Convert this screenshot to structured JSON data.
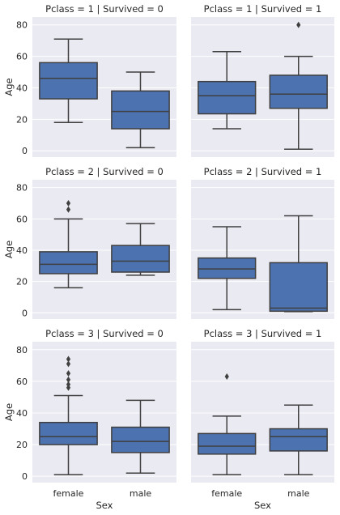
{
  "chart_data": {
    "type": "box",
    "x_label": "Sex",
    "y_label": "Age",
    "categories": [
      "female",
      "male"
    ],
    "y_ticks": [
      0,
      20,
      40,
      60,
      80
    ],
    "ylim": [
      -4,
      85
    ],
    "grid": true,
    "colors": {
      "box_fill": "#4c72b0",
      "line": "#3f3f3f",
      "panel_bg": "#eaeaf2",
      "grid": "#ffffff"
    },
    "panels": [
      {
        "title": "Pclass = 1 | Survived = 0",
        "boxes": [
          {
            "category": "female",
            "whisker_low": 18,
            "q1": 33,
            "median": 46,
            "q3": 56,
            "whisker_high": 71,
            "fliers": []
          },
          {
            "category": "male",
            "whisker_low": 2,
            "q1": 14,
            "median": 25,
            "q3": 38,
            "whisker_high": 50,
            "fliers": []
          }
        ]
      },
      {
        "title": "Pclass = 1 | Survived = 1",
        "boxes": [
          {
            "category": "female",
            "whisker_low": 14,
            "q1": 23.5,
            "median": 35,
            "q3": 44,
            "whisker_high": 63,
            "fliers": []
          },
          {
            "category": "male",
            "whisker_low": 1,
            "q1": 27,
            "median": 36,
            "q3": 48,
            "whisker_high": 60,
            "fliers": [
              80
            ]
          }
        ]
      },
      {
        "title": "Pclass = 2 | Survived = 0",
        "boxes": [
          {
            "category": "female",
            "whisker_low": 16,
            "q1": 25,
            "median": 31,
            "q3": 39,
            "whisker_high": 60,
            "fliers": [
              66,
              70
            ]
          },
          {
            "category": "male",
            "whisker_low": 24,
            "q1": 26,
            "median": 33,
            "q3": 43,
            "whisker_high": 57,
            "fliers": []
          }
        ]
      },
      {
        "title": "Pclass = 2 | Survived = 1",
        "boxes": [
          {
            "category": "female",
            "whisker_low": 2,
            "q1": 22,
            "median": 28,
            "q3": 35,
            "whisker_high": 55,
            "fliers": []
          },
          {
            "category": "male",
            "whisker_low": 0.7,
            "q1": 1,
            "median": 3,
            "q3": 32,
            "whisker_high": 62,
            "fliers": []
          }
        ]
      },
      {
        "title": "Pclass = 3 | Survived = 0",
        "boxes": [
          {
            "category": "female",
            "whisker_low": 1,
            "q1": 20,
            "median": 25,
            "q3": 34,
            "whisker_high": 51,
            "fliers": [
              56,
              58,
              61,
              65,
              71,
              74
            ]
          },
          {
            "category": "male",
            "whisker_low": 2,
            "q1": 15,
            "median": 22,
            "q3": 31,
            "whisker_high": 48,
            "fliers": []
          }
        ]
      },
      {
        "title": "Pclass = 3 | Survived = 1",
        "boxes": [
          {
            "category": "female",
            "whisker_low": 1,
            "q1": 14,
            "median": 19,
            "q3": 27,
            "whisker_high": 38,
            "fliers": [
              63
            ]
          },
          {
            "category": "male",
            "whisker_low": 1,
            "q1": 16,
            "median": 25,
            "q3": 30,
            "whisker_high": 45,
            "fliers": []
          }
        ]
      }
    ]
  }
}
